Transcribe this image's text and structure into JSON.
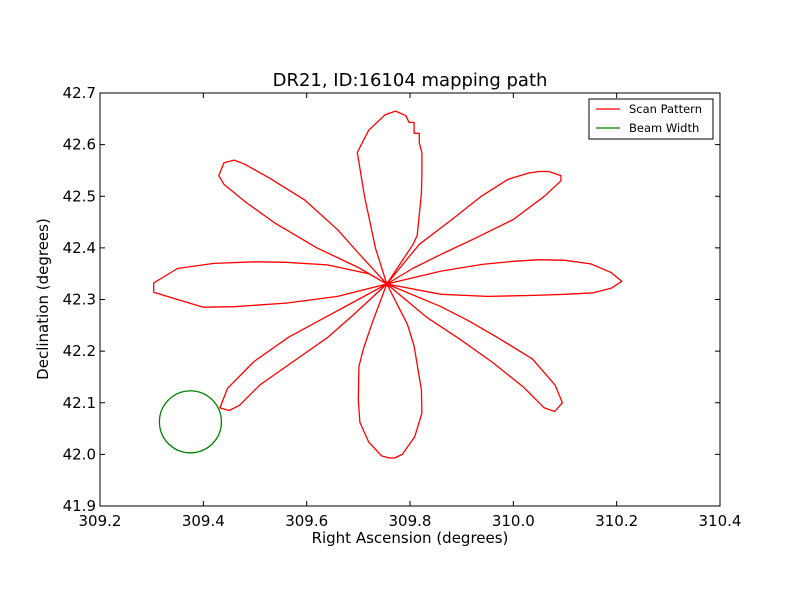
{
  "chart_data": {
    "type": "line",
    "title": "DR21, ID:16104 mapping path",
    "xlabel": "Right Ascension (degrees)",
    "ylabel": "Declination (degrees)",
    "xlim": [
      309.2,
      310.4
    ],
    "ylim": [
      41.9,
      42.7
    ],
    "x_ticks": [
      "309.2",
      "309.4",
      "309.6",
      "309.8",
      "310.0",
      "310.2",
      "310.4"
    ],
    "y_ticks": [
      "41.9",
      "42.0",
      "42.1",
      "42.2",
      "42.3",
      "42.4",
      "42.5",
      "42.6",
      "42.7"
    ],
    "grid": false,
    "legend_position": "top-right",
    "series": [
      {
        "name": "Scan Pattern",
        "color": "#ff0000",
        "points": [
          [
            309.755,
            42.33
          ],
          [
            309.733,
            42.4
          ],
          [
            309.712,
            42.5
          ],
          [
            309.698,
            42.585
          ],
          [
            309.72,
            42.628
          ],
          [
            309.752,
            42.658
          ],
          [
            309.772,
            42.665
          ],
          [
            309.792,
            42.656
          ],
          [
            309.798,
            42.643
          ],
          [
            309.808,
            42.643
          ],
          [
            309.808,
            42.622
          ],
          [
            309.818,
            42.622
          ],
          [
            309.818,
            42.604
          ],
          [
            309.823,
            42.584
          ],
          [
            309.823,
            42.542
          ],
          [
            309.822,
            42.505
          ],
          [
            309.817,
            42.455
          ],
          [
            309.814,
            42.424
          ],
          [
            309.806,
            42.407
          ],
          [
            309.755,
            42.33
          ],
          [
            309.818,
            42.407
          ],
          [
            309.88,
            42.454
          ],
          [
            309.938,
            42.5
          ],
          [
            309.99,
            42.533
          ],
          [
            310.03,
            42.545
          ],
          [
            310.05,
            42.548
          ],
          [
            310.069,
            42.548
          ],
          [
            310.086,
            42.542
          ],
          [
            310.092,
            42.54
          ],
          [
            310.092,
            42.53
          ],
          [
            310.06,
            42.5
          ],
          [
            310.0,
            42.455
          ],
          [
            309.925,
            42.418
          ],
          [
            309.863,
            42.389
          ],
          [
            309.805,
            42.36
          ],
          [
            309.755,
            42.33
          ],
          [
            309.86,
            42.355
          ],
          [
            309.94,
            42.368
          ],
          [
            310.0,
            42.374
          ],
          [
            310.05,
            42.377
          ],
          [
            310.1,
            42.376
          ],
          [
            310.15,
            42.369
          ],
          [
            310.19,
            42.352
          ],
          [
            310.21,
            42.335
          ],
          [
            310.19,
            42.322
          ],
          [
            310.155,
            42.313
          ],
          [
            310.1,
            42.31
          ],
          [
            310.04,
            42.308
          ],
          [
            309.95,
            42.306
          ],
          [
            309.86,
            42.31
          ],
          [
            309.755,
            42.33
          ],
          [
            309.833,
            42.265
          ],
          [
            309.895,
            42.224
          ],
          [
            309.96,
            42.178
          ],
          [
            310.02,
            42.13
          ],
          [
            310.06,
            42.09
          ],
          [
            310.08,
            42.083
          ],
          [
            310.095,
            42.1
          ],
          [
            310.081,
            42.134
          ],
          [
            310.037,
            42.185
          ],
          [
            309.97,
            42.226
          ],
          [
            309.913,
            42.259
          ],
          [
            309.86,
            42.286
          ],
          [
            309.755,
            42.33
          ],
          [
            309.795,
            42.252
          ],
          [
            309.808,
            42.21
          ],
          [
            309.817,
            42.155
          ],
          [
            309.822,
            42.125
          ],
          [
            309.823,
            42.08
          ],
          [
            309.809,
            42.034
          ],
          [
            309.785,
            42.0
          ],
          [
            309.77,
            41.993
          ],
          [
            309.76,
            41.993
          ],
          [
            309.745,
            41.997
          ],
          [
            309.72,
            42.024
          ],
          [
            309.703,
            42.062
          ],
          [
            309.7,
            42.105
          ],
          [
            309.701,
            42.17
          ],
          [
            309.71,
            42.205
          ],
          [
            309.728,
            42.258
          ],
          [
            309.755,
            42.33
          ],
          [
            309.69,
            42.27
          ],
          [
            309.64,
            42.226
          ],
          [
            309.58,
            42.184
          ],
          [
            309.51,
            42.135
          ],
          [
            309.47,
            42.095
          ],
          [
            309.45,
            42.085
          ],
          [
            309.432,
            42.09
          ],
          [
            309.447,
            42.128
          ],
          [
            309.498,
            42.18
          ],
          [
            309.565,
            42.227
          ],
          [
            309.628,
            42.261
          ],
          [
            309.7,
            42.3
          ],
          [
            309.755,
            42.33
          ],
          [
            309.66,
            42.306
          ],
          [
            309.56,
            42.293
          ],
          [
            309.46,
            42.286
          ],
          [
            309.4,
            42.285
          ],
          [
            309.35,
            42.3
          ],
          [
            309.304,
            42.314
          ],
          [
            309.304,
            42.332
          ],
          [
            309.35,
            42.36
          ],
          [
            309.42,
            42.37
          ],
          [
            309.5,
            42.373
          ],
          [
            309.56,
            42.372
          ],
          [
            309.64,
            42.367
          ],
          [
            309.72,
            42.35
          ],
          [
            309.755,
            42.33
          ],
          [
            309.7,
            42.362
          ],
          [
            309.62,
            42.4
          ],
          [
            309.54,
            42.447
          ],
          [
            309.48,
            42.49
          ],
          [
            309.44,
            42.523
          ],
          [
            309.43,
            42.54
          ],
          [
            309.44,
            42.565
          ],
          [
            309.46,
            42.57
          ],
          [
            309.48,
            42.562
          ],
          [
            309.53,
            42.534
          ],
          [
            309.596,
            42.493
          ],
          [
            309.66,
            42.435
          ],
          [
            309.7,
            42.39
          ],
          [
            309.755,
            42.33
          ]
        ]
      },
      {
        "name": "Beam Width",
        "color": "#008000",
        "center": [
          309.375,
          42.063
        ],
        "radius": 0.06
      }
    ]
  },
  "legend": {
    "items": [
      {
        "label": "Scan Pattern",
        "color": "#ff0000"
      },
      {
        "label": "Beam Width",
        "color": "#008000"
      }
    ]
  }
}
